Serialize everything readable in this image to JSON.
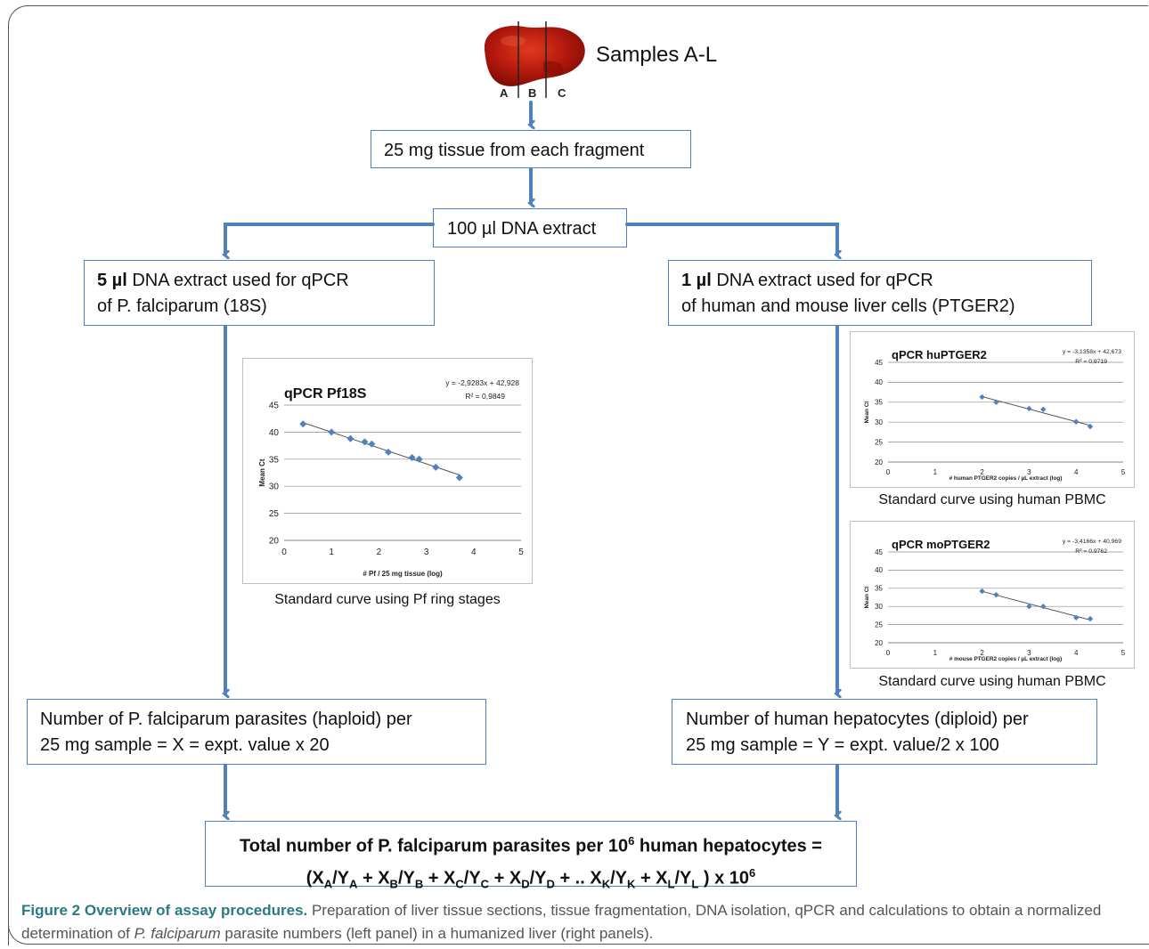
{
  "samples_label": "Samples A-L",
  "fragment_labels": [
    "A",
    "B",
    "C"
  ],
  "step1": "25 mg tissue from each fragment",
  "step2": "100 µl DNA extract",
  "left_box": {
    "bold": "5 µl",
    "line1_rest": " DNA extract used for qPCR",
    "line2": "of P. falciparum (18S)"
  },
  "right_box": {
    "bold": "1 µl",
    "line1_rest": " DNA extract used for qPCR",
    "line2": "of human and mouse liver cells (PTGER2)"
  },
  "left_result": {
    "line1": "Number of P. falciparum parasites (haploid) per",
    "line2": "25 mg sample = X = expt. value x 20"
  },
  "right_result": {
    "line1": "Number of human hepatocytes (diploid) per",
    "line2": "25 mg sample = Y = expt. value/2  x 100"
  },
  "final_box": {
    "line1": "Total number of P. falciparum parasites per 10",
    "line1_sup": "6",
    "line1_end": " human hepatocytes  ="
  },
  "chart_captions": {
    "pf": "Standard curve using Pf ring stages",
    "hu": "Standard curve using human PBMC",
    "mo": "Standard curve using human PBMC"
  },
  "figure_caption": {
    "lead": "Figure 2 Overview of assay procedures.",
    "text1": " Preparation of liver tissue sections, tissue fragmentation, DNA isolation, qPCR and calculations to obtain a normalized determination of ",
    "italic": "P. falciparum",
    "text2": " parasite numbers (left panel) in a humanized liver (right panels)."
  },
  "colors": {
    "box_border": "#4f81bd",
    "arrow": "#4f81bd",
    "marker": "#4f81bd",
    "caption_lead": "#2b7a83"
  },
  "chart_data": [
    {
      "type": "scatter",
      "title": "qPCR Pf18S",
      "equation": "y = -2,9283x + 42,928",
      "r2": "R² = 0,9849",
      "xlabel": "# Pf / 25 mg tissue (log)",
      "ylabel": "Mean Ct",
      "xlim": [
        0,
        5
      ],
      "ylim": [
        20,
        45
      ],
      "xticks": [
        0,
        1,
        2,
        3,
        4,
        5
      ],
      "yticks": [
        20,
        25,
        30,
        35,
        40,
        45
      ],
      "grid": true,
      "x": [
        0.4,
        1.0,
        1.4,
        1.7,
        1.85,
        2.2,
        2.7,
        2.85,
        3.2,
        3.7
      ],
      "y": [
        41.5,
        40.0,
        38.8,
        38.2,
        37.8,
        36.3,
        35.3,
        35.0,
        33.5,
        31.6
      ],
      "trend": {
        "slope": -2.9283,
        "intercept": 42.928,
        "x_range": [
          0.4,
          3.7
        ]
      }
    },
    {
      "type": "scatter",
      "title": "qPCR huPTGER2",
      "equation": "y = -3,1358x + 42,673",
      "r2": "R² = 0,9719",
      "xlabel": "# human PTGER2 copies / µL extract (log)",
      "ylabel": "Mean Ct",
      "xlim": [
        0,
        5
      ],
      "ylim": [
        20,
        45
      ],
      "xticks": [
        0,
        1,
        2,
        3,
        4,
        5
      ],
      "yticks": [
        20,
        25,
        30,
        35,
        40,
        45
      ],
      "grid": true,
      "x": [
        2.0,
        2.3,
        3.0,
        3.3,
        4.0,
        4.3
      ],
      "y": [
        36.3,
        35.0,
        33.4,
        33.2,
        30.1,
        28.9
      ],
      "trend": {
        "slope": -3.1358,
        "intercept": 42.673,
        "x_range": [
          2.0,
          4.3
        ]
      }
    },
    {
      "type": "scatter",
      "title": "qPCR moPTGER2",
      "equation": "y = -3,4166x + 40,969",
      "r2": "R² = 0,9762",
      "xlabel": "# mouse PTGER2 copies / µL extract (log)",
      "ylabel": "Mean Ct",
      "xlim": [
        0,
        5
      ],
      "ylim": [
        20,
        45
      ],
      "xticks": [
        0,
        1,
        2,
        3,
        4,
        5
      ],
      "yticks": [
        20,
        25,
        30,
        35,
        40,
        45
      ],
      "grid": true,
      "x": [
        2.0,
        2.3,
        3.0,
        3.3,
        4.0,
        4.3
      ],
      "y": [
        34.2,
        33.2,
        30.0,
        30.0,
        26.9,
        26.6
      ],
      "trend": {
        "slope": -3.4166,
        "intercept": 40.969,
        "x_range": [
          2.0,
          4.3
        ]
      }
    }
  ]
}
